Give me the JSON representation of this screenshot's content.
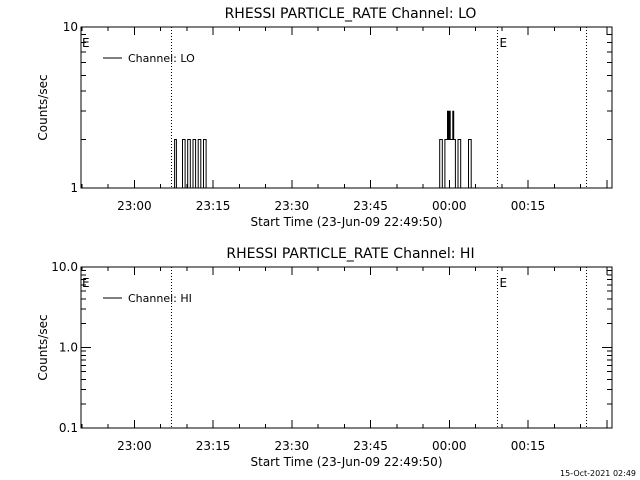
{
  "footer": {
    "timestamp": "15-Oct-2021 02:49"
  },
  "chart_data": [
    {
      "type": "line",
      "title": "RHESSI PARTICLE_RATE Channel: LO",
      "xlabel": "Start Time (23-Jun-09 22:49:50)",
      "ylabel": "Counts/sec",
      "y_scale": "log",
      "ylim": [
        1,
        10
      ],
      "y_ticks": [
        {
          "value": 1,
          "label": "1"
        },
        {
          "value": 10,
          "label": "10"
        }
      ],
      "xlim": [
        "22:49:50",
        "00:31:00"
      ],
      "x_ticks": [
        "23:00",
        "23:15",
        "23:30",
        "23:45",
        "00:00",
        "00:15"
      ],
      "event_lines": [
        {
          "time": "23:07:00",
          "label": ""
        },
        {
          "time": "00:09:00",
          "label": "E"
        },
        {
          "time": "00:26:00",
          "label": ""
        }
      ],
      "start_marker": "E",
      "legend": {
        "position": "top-left"
      },
      "series": [
        {
          "name": "Channel: LO",
          "x": [
            "23:07:00",
            "23:07:30",
            "23:07:40",
            "23:07:50",
            "23:08:00",
            "23:09:00",
            "23:09:10",
            "23:09:30",
            "23:09:40",
            "23:10:00",
            "23:10:10",
            "23:10:30",
            "23:10:40",
            "23:11:00",
            "23:11:10",
            "23:11:30",
            "23:11:40",
            "23:12:00",
            "23:12:10",
            "23:12:30",
            "23:12:40",
            "23:13:00",
            "23:13:10",
            "23:13:30",
            "23:13:40",
            "23:58:00",
            "23:58:10",
            "23:58:30",
            "23:58:40",
            "23:59:00",
            "23:59:10",
            "23:59:30",
            "23:59:40",
            "23:59:50",
            "00:00:00",
            "00:00:10",
            "00:00:30",
            "00:00:40",
            "00:00:50",
            "00:01:00",
            "00:01:10",
            "00:01:30",
            "00:01:40",
            "00:02:00",
            "00:02:10",
            "00:02:30",
            "00:02:40",
            "00:03:00",
            "00:03:30",
            "00:03:40",
            "00:04:00",
            "00:04:10",
            "00:04:30",
            "00:04:40"
          ],
          "y": [
            1,
            1,
            2,
            2,
            1,
            1,
            2,
            2,
            1,
            1,
            2,
            2,
            1,
            1,
            2,
            2,
            1,
            1,
            2,
            2,
            1,
            1,
            2,
            2,
            1,
            1,
            2,
            2,
            1,
            1,
            2,
            2,
            3,
            2,
            3,
            2,
            2,
            3,
            2,
            2,
            1,
            1,
            2,
            2,
            1,
            1,
            1,
            1,
            1,
            2,
            2,
            1,
            1,
            1
          ]
        }
      ]
    },
    {
      "type": "line",
      "title": "RHESSI PARTICLE_RATE Channel: HI",
      "xlabel": "Start Time (23-Jun-09 22:49:50)",
      "ylabel": "Counts/sec",
      "y_scale": "log",
      "ylim": [
        0.1,
        10
      ],
      "y_ticks": [
        {
          "value": 0.1,
          "label": "0.1"
        },
        {
          "value": 1,
          "label": "1.0"
        },
        {
          "value": 10,
          "label": "10.0"
        }
      ],
      "xlim": [
        "22:49:50",
        "00:31:00"
      ],
      "x_ticks": [
        "23:00",
        "23:15",
        "23:30",
        "23:45",
        "00:00",
        "00:15"
      ],
      "event_lines": [
        {
          "time": "23:07:00",
          "label": ""
        },
        {
          "time": "00:09:00",
          "label": "E"
        },
        {
          "time": "00:26:00",
          "label": ""
        }
      ],
      "start_marker": "E",
      "legend": {
        "position": "top-left"
      },
      "series": [
        {
          "name": "Channel: HI",
          "x": [],
          "y": []
        }
      ]
    }
  ]
}
